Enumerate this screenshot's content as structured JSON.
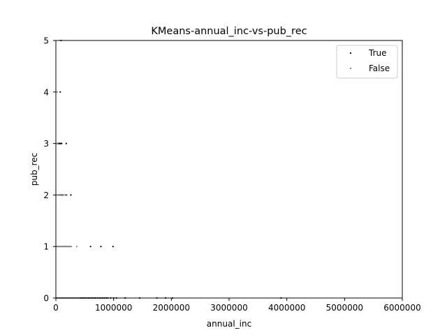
{
  "chart_data": {
    "type": "scatter",
    "title": "KMeans-annual_inc-vs-pub_rec",
    "xlabel": "annual_inc",
    "ylabel": "pub_rec",
    "xlim": [
      0,
      6000000
    ],
    "ylim": [
      0,
      5
    ],
    "x_ticks": [
      0,
      1000000,
      2000000,
      3000000,
      4000000,
      5000000,
      6000000
    ],
    "x_tick_labels": [
      "0",
      "1000000",
      "2000000",
      "3000000",
      "4000000",
      "5000000",
      "6000000"
    ],
    "y_ticks": [
      0,
      1,
      2,
      3,
      4,
      5
    ],
    "y_tick_labels": [
      "0",
      "1",
      "2",
      "3",
      "4",
      "5"
    ],
    "grid": false,
    "legend_position": "top-right",
    "series": [
      {
        "name": "True",
        "color": "#000000",
        "points": [
          [
            420000,
            0
          ],
          [
            450000,
            0
          ],
          [
            480000,
            0
          ],
          [
            510000,
            0
          ],
          [
            540000,
            0
          ],
          [
            570000,
            0
          ],
          [
            600000,
            0
          ],
          [
            630000,
            0
          ],
          [
            660000,
            0
          ],
          [
            690000,
            0
          ],
          [
            720000,
            0
          ],
          [
            750000,
            0
          ],
          [
            780000,
            0
          ],
          [
            810000,
            0
          ],
          [
            840000,
            0
          ],
          [
            870000,
            0
          ],
          [
            900000,
            0
          ],
          [
            950000,
            0
          ],
          [
            1000000,
            0
          ],
          [
            1050000,
            0
          ],
          [
            1200000,
            0
          ],
          [
            1450000,
            0
          ],
          [
            1750000,
            0
          ],
          [
            1900000,
            0
          ],
          [
            2020000,
            0
          ],
          [
            3900000,
            0
          ],
          [
            90000,
            5
          ],
          [
            75000,
            4
          ],
          [
            40000,
            3
          ],
          [
            55000,
            3
          ],
          [
            70000,
            3
          ],
          [
            85000,
            3
          ],
          [
            100000,
            3
          ],
          [
            180000,
            3
          ],
          [
            60000,
            2
          ],
          [
            90000,
            2
          ],
          [
            120000,
            2
          ],
          [
            180000,
            2
          ],
          [
            260000,
            2
          ],
          [
            600000,
            1
          ],
          [
            780000,
            1
          ],
          [
            990000,
            1
          ]
        ]
      },
      {
        "name": "False",
        "color": "#808080",
        "points": [
          [
            10000,
            0
          ],
          [
            30000,
            0
          ],
          [
            50000,
            0
          ],
          [
            70000,
            0
          ],
          [
            90000,
            0
          ],
          [
            110000,
            0
          ],
          [
            130000,
            0
          ],
          [
            150000,
            0
          ],
          [
            170000,
            0
          ],
          [
            190000,
            0
          ],
          [
            210000,
            0
          ],
          [
            230000,
            0
          ],
          [
            250000,
            0
          ],
          [
            270000,
            0
          ],
          [
            290000,
            0
          ],
          [
            310000,
            0
          ],
          [
            330000,
            0
          ],
          [
            350000,
            0
          ],
          [
            370000,
            0
          ],
          [
            390000,
            0
          ],
          [
            10000,
            1
          ],
          [
            25000,
            1
          ],
          [
            40000,
            1
          ],
          [
            55000,
            1
          ],
          [
            70000,
            1
          ],
          [
            85000,
            1
          ],
          [
            100000,
            1
          ],
          [
            115000,
            1
          ],
          [
            130000,
            1
          ],
          [
            145000,
            1
          ],
          [
            160000,
            1
          ],
          [
            175000,
            1
          ],
          [
            190000,
            1
          ],
          [
            205000,
            1
          ],
          [
            220000,
            1
          ],
          [
            235000,
            1
          ],
          [
            250000,
            1
          ],
          [
            265000,
            1
          ],
          [
            360000,
            1
          ],
          [
            10000,
            2
          ],
          [
            30000,
            2
          ],
          [
            50000,
            2
          ],
          [
            70000,
            2
          ],
          [
            100000,
            2
          ],
          [
            130000,
            2
          ],
          [
            160000,
            2
          ],
          [
            190000,
            2
          ],
          [
            15000,
            3
          ],
          [
            30000,
            3
          ],
          [
            20000,
            4
          ]
        ]
      }
    ]
  }
}
